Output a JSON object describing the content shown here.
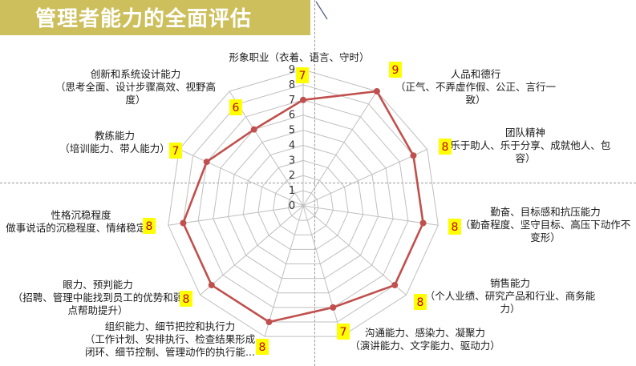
{
  "page": {
    "title": "管理者能力的全面评估"
  },
  "chart_data": {
    "type": "radar",
    "title": "",
    "rlim": [
      0,
      9
    ],
    "ticks": [
      "0",
      "1",
      "2",
      "3",
      "4",
      "5",
      "6",
      "7",
      "8",
      "9"
    ],
    "grid": true,
    "categories": [
      {
        "name": "形象职业（衣着、语言、守时）",
        "lines": [
          "形象职业（衣着、语言、守时）"
        ]
      },
      {
        "name": "人品和德行（正气、不弄虚作假、公正、言行一致）",
        "lines": [
          "人品和德行",
          "（正气、不弄虚作假、公正、言行一",
          "致）"
        ]
      },
      {
        "name": "团队精神（乐于助人、乐于分享、成就他人、包容）",
        "lines": [
          "团队精神",
          "（乐于助人、乐于分享、成就他人、包",
          "容）"
        ]
      },
      {
        "name": "勤奋、目标感和抗压能力（勤奋程度、坚守目标、高压下动作不变形）",
        "lines": [
          "勤奋、目标感和抗压能力",
          "（勤奋程度、坚守目标、高压下动作不",
          "变形）"
        ]
      },
      {
        "name": "销售能力（个人业绩、研究产品和行业、商务能力）",
        "lines": [
          "销售能力",
          "（个人业绩、研究产品和行业、商务能",
          "力）"
        ]
      },
      {
        "name": "沟通能力、感染力、凝聚力（演讲能力、文字能力、驱动力）",
        "lines": [
          "沟通能力、感染力、凝聚力",
          "（演讲能力、文字能力、驱动力）"
        ]
      },
      {
        "name": "组织能力、细节把控和执行力（工作计划、安排执行、检查结果形成闭环、细节控制、管理动作的执行能...",
        "lines": [
          "组织能力、细节把控和执行力",
          "（工作计划、安排执行、检查结果形成",
          "闭环、细节控制、管理动作的执行能..."
        ]
      },
      {
        "name": "眼力、预判能力（招聘、管理中能找到员工的优势和弱点帮助提升）",
        "lines": [
          "眼力、预判能力",
          "（招聘、管理中能找到员工的优势和弱",
          "点帮助提升）"
        ]
      },
      {
        "name": "性格沉稳程度（做事说话的沉稳程度、情绪稳定）",
        "lines": [
          "性格沉稳程度",
          "做事说话的沉稳程度、情绪稳定）"
        ]
      },
      {
        "name": "教练能力（培训能力、带人能力）",
        "lines": [
          "教练能力",
          "（培训能力、带人能力）"
        ]
      },
      {
        "name": "创新和系统设计能力（思考全面、设计步骤高效、视野高度）",
        "lines": [
          "创新和系统设计能力",
          "（思考全面、设计步骤高效、视野高",
          "度）"
        ]
      }
    ],
    "series": [
      {
        "values": [
          7,
          9,
          8,
          8,
          8,
          7,
          8,
          8,
          8,
          7,
          6
        ],
        "color": "#c0504d"
      }
    ],
    "badges": [
      "7",
      "9",
      "8",
      "8",
      "8",
      "7",
      "8",
      "8",
      "8",
      "7",
      "6"
    ],
    "colors": {
      "series": "#c0504d",
      "grid": "#bfbfbf",
      "badge_bg": "#ffff00",
      "badge_text": "#c00000"
    }
  }
}
